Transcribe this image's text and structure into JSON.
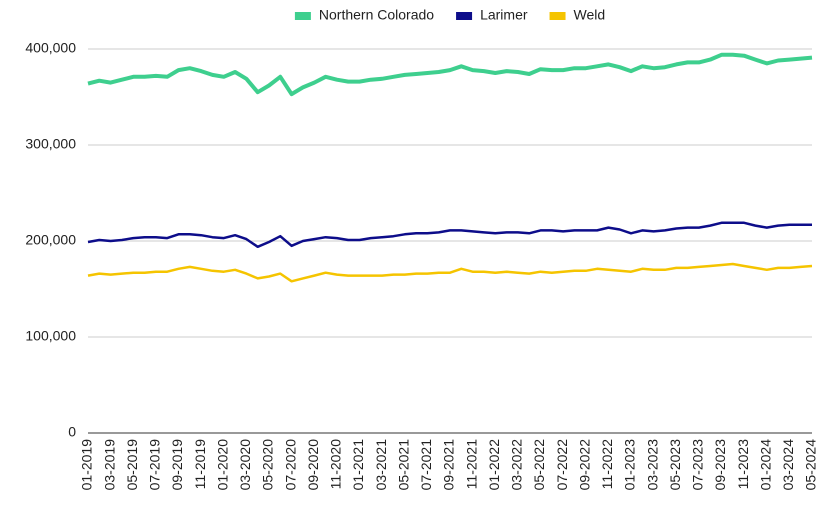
{
  "chart_data": {
    "type": "line",
    "categories": [
      "01-2019",
      null,
      "03-2019",
      null,
      "05-2019",
      null,
      "07-2019",
      null,
      "09-2019",
      null,
      "11-2019",
      null,
      "01-2020",
      null,
      "03-2020",
      null,
      "05-2020",
      null,
      "07-2020",
      null,
      "09-2020",
      null,
      "11-2020",
      null,
      "01-2021",
      null,
      "03-2021",
      null,
      "05-2021",
      null,
      "07-2021",
      null,
      "09-2021",
      null,
      "11-2021",
      null,
      "01-2022",
      null,
      "03-2022",
      null,
      "05-2022",
      null,
      "07-2022",
      null,
      "09-2022",
      null,
      "11-2022",
      null,
      "01-2023",
      null,
      "03-2023",
      null,
      "05-2023",
      null,
      "07-2023",
      null,
      "09-2023",
      null,
      "11-2023",
      null,
      "01-2024",
      null,
      "03-2024",
      null,
      "05-2024"
    ],
    "series": [
      {
        "name": "Northern Colorado",
        "color": "#3ecf8e",
        "values": [
          364000,
          367000,
          365000,
          368000,
          371000,
          371000,
          372000,
          371000,
          378000,
          380000,
          377000,
          373000,
          371000,
          376000,
          369000,
          355000,
          362000,
          371000,
          353000,
          360000,
          365000,
          371000,
          368000,
          366000,
          366000,
          368000,
          369000,
          371000,
          373000,
          374000,
          375000,
          376000,
          378000,
          382000,
          378000,
          377000,
          375000,
          377000,
          376000,
          374000,
          379000,
          378000,
          378000,
          380000,
          380000,
          382000,
          384000,
          381000,
          377000,
          382000,
          380000,
          381000,
          384000,
          386000,
          386000,
          389000,
          394000,
          394000,
          393000,
          389000,
          385000,
          388000,
          389000,
          390000,
          391000
        ]
      },
      {
        "name": "Larimer",
        "color": "#0d0d8a",
        "values": [
          199000,
          201000,
          200000,
          201000,
          203000,
          204000,
          204000,
          203000,
          207000,
          207000,
          206000,
          204000,
          203000,
          206000,
          202000,
          194000,
          199000,
          205000,
          195000,
          200000,
          202000,
          204000,
          203000,
          201000,
          201000,
          203000,
          204000,
          205000,
          207000,
          208000,
          208000,
          209000,
          211000,
          211000,
          210000,
          209000,
          208000,
          209000,
          209000,
          208000,
          211000,
          211000,
          210000,
          211000,
          211000,
          211000,
          214000,
          212000,
          208000,
          211000,
          210000,
          211000,
          213000,
          214000,
          214000,
          216000,
          219000,
          219000,
          219000,
          216000,
          214000,
          216000,
          217000,
          217000,
          217000
        ]
      },
      {
        "name": "Weld",
        "color": "#f5c400",
        "values": [
          164000,
          166000,
          165000,
          166000,
          167000,
          167000,
          168000,
          168000,
          171000,
          173000,
          171000,
          169000,
          168000,
          170000,
          166000,
          161000,
          163000,
          166000,
          158000,
          161000,
          164000,
          167000,
          165000,
          164000,
          164000,
          164000,
          164000,
          165000,
          165000,
          166000,
          166000,
          167000,
          167000,
          171000,
          168000,
          168000,
          167000,
          168000,
          167000,
          166000,
          168000,
          167000,
          168000,
          169000,
          169000,
          171000,
          170000,
          169000,
          168000,
          171000,
          170000,
          170000,
          172000,
          172000,
          173000,
          174000,
          175000,
          176000,
          174000,
          172000,
          170000,
          172000,
          172000,
          173000,
          174000
        ]
      }
    ],
    "ylim": [
      0,
      400000
    ],
    "yticks": [
      0,
      {
        "value": 100000,
        "label": "100,000"
      },
      {
        "value": 200000,
        "label": "200,000"
      },
      {
        "value": 300000,
        "label": "300,000"
      },
      {
        "value": 400000,
        "label": "400,000"
      }
    ],
    "grid": true,
    "legend": "top"
  }
}
